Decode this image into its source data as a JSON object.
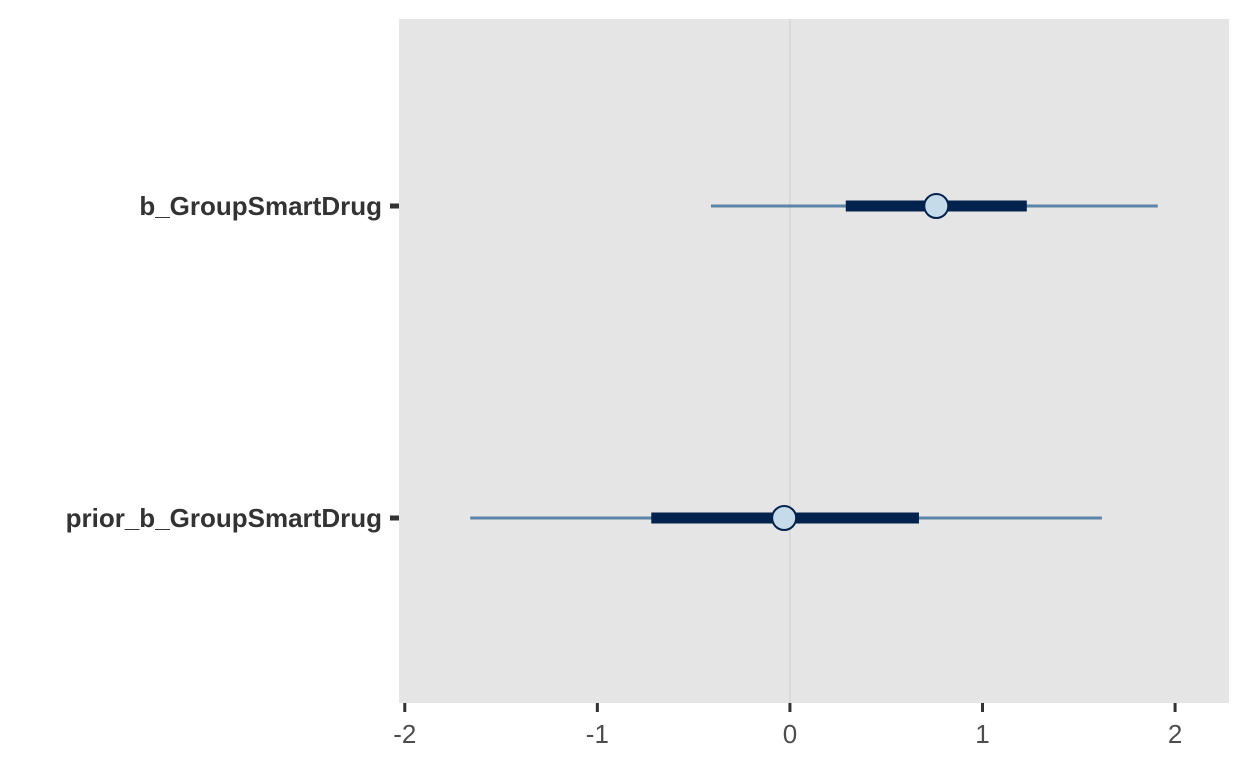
{
  "chart_data": {
    "type": "interval",
    "title": "",
    "xlabel": "",
    "ylabel": "",
    "xlim": [
      -2.03,
      2.28
    ],
    "x_ticks": [
      -2,
      -1,
      0,
      1,
      2
    ],
    "x_tick_labels": [
      "-2",
      "-1",
      "0",
      "1",
      "2"
    ],
    "reference_line": 0,
    "grid": false,
    "legend": "none",
    "categories": [
      "b_GroupSmartDrug",
      "prior_b_GroupSmartDrug"
    ],
    "intervals": [
      {
        "parameter": "b_GroupSmartDrug",
        "point": 0.76,
        "inner": [
          0.29,
          1.23
        ],
        "outer": [
          -0.41,
          1.91
        ]
      },
      {
        "parameter": "prior_b_GroupSmartDrug",
        "point": -0.03,
        "inner": [
          -0.72,
          0.67
        ],
        "outer": [
          -1.66,
          1.62
        ]
      }
    ],
    "colors": {
      "panel_bg": "#e5e5e5",
      "ref_line": "#d9d9d9",
      "outer_line": "#5a84a8",
      "inner_line": "#03234e",
      "point_fill": "#c6dbe9",
      "point_stroke": "#03234e",
      "tick_mark": "#333333"
    }
  }
}
